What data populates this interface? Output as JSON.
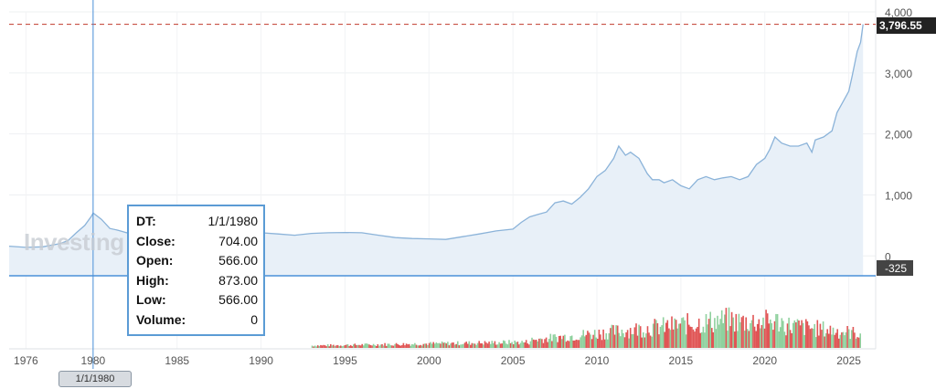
{
  "watermark": "Investing",
  "tooltip": {
    "dt_label": "DT:",
    "dt": "1/1/1980",
    "close_label": "Close:",
    "close": "704.00",
    "open_label": "Open:",
    "open": "566.00",
    "high_label": "High:",
    "high": "873.00",
    "low_label": "Low:",
    "low": "566.00",
    "volume_label": "Volume:",
    "volume": "0"
  },
  "crosshair": {
    "date": "1/1/1980",
    "value_label": "-325"
  },
  "last_price": "3,796.55",
  "colors": {
    "line": "#8bb3d9",
    "area": "#e8f0f8",
    "price_line": "#c0392b",
    "price_tag_bg": "#222222",
    "crosshair": "#4a90d9",
    "cross_tag_bg": "#444444",
    "vol_up": "#8fd19e",
    "vol_down": "#e05555"
  },
  "chart_data": {
    "type": "area",
    "xlim": [
      1975.0,
      2026.6
    ],
    "ylim": [
      -325,
      4000
    ],
    "x_ticks": [
      "1976",
      "1980",
      "1985",
      "1990",
      "1995",
      "2000",
      "2005",
      "2010",
      "2015",
      "2020",
      "2025"
    ],
    "y_ticks": [
      "4,000",
      "3,000",
      "2,000",
      "1,000",
      "0"
    ],
    "series": [
      {
        "x": [
          1975.0,
          1976,
          1977,
          1978,
          1978.5,
          1979,
          1979.5,
          1979.9,
          1980,
          1980.5,
          1981,
          1981.5,
          1982,
          1982.5,
          1983,
          1984,
          1985,
          1986,
          1987,
          1988,
          1989,
          1990,
          1991,
          1992,
          1993,
          1994,
          1995,
          1996,
          1997,
          1998,
          1999,
          2000,
          2001,
          2002,
          2003,
          2004,
          2005,
          2005.5,
          2006,
          2006.5,
          2007,
          2007.5,
          2008,
          2008.5,
          2009,
          2009.5,
          2010,
          2010.5,
          2011,
          2011.3,
          2011.7,
          2012,
          2012.5,
          2013,
          2013.3,
          2013.7,
          2014,
          2014.5,
          2015,
          2015.5,
          2016,
          2016.5,
          2017,
          2017.5,
          2018,
          2018.5,
          2019,
          2019.5,
          2020,
          2020.3,
          2020.6,
          2021,
          2021.5,
          2022,
          2022.5,
          2022.8,
          2023,
          2023.5,
          2024,
          2024.3,
          2024.6,
          2025,
          2025.2,
          2025.5,
          2025.7,
          2025.85
        ],
        "y": [
          160,
          140,
          150,
          200,
          250,
          380,
          500,
          650,
          704,
          600,
          450,
          420,
          380,
          450,
          400,
          370,
          330,
          350,
          450,
          430,
          390,
          380,
          360,
          340,
          370,
          380,
          385,
          380,
          340,
          300,
          285,
          280,
          270,
          315,
          360,
          410,
          440,
          550,
          640,
          680,
          720,
          870,
          900,
          850,
          960,
          1100,
          1300,
          1400,
          1600,
          1800,
          1650,
          1700,
          1600,
          1350,
          1250,
          1250,
          1200,
          1250,
          1150,
          1100,
          1250,
          1300,
          1250,
          1280,
          1300,
          1250,
          1300,
          1500,
          1600,
          1750,
          1950,
          1850,
          1800,
          1800,
          1850,
          1700,
          1900,
          1950,
          2050,
          2350,
          2500,
          2700,
          2950,
          3350,
          3500,
          3796.55
        ]
      }
    ],
    "volume": {
      "start_year": 1993,
      "note": "volume bars shown without axis"
    }
  }
}
